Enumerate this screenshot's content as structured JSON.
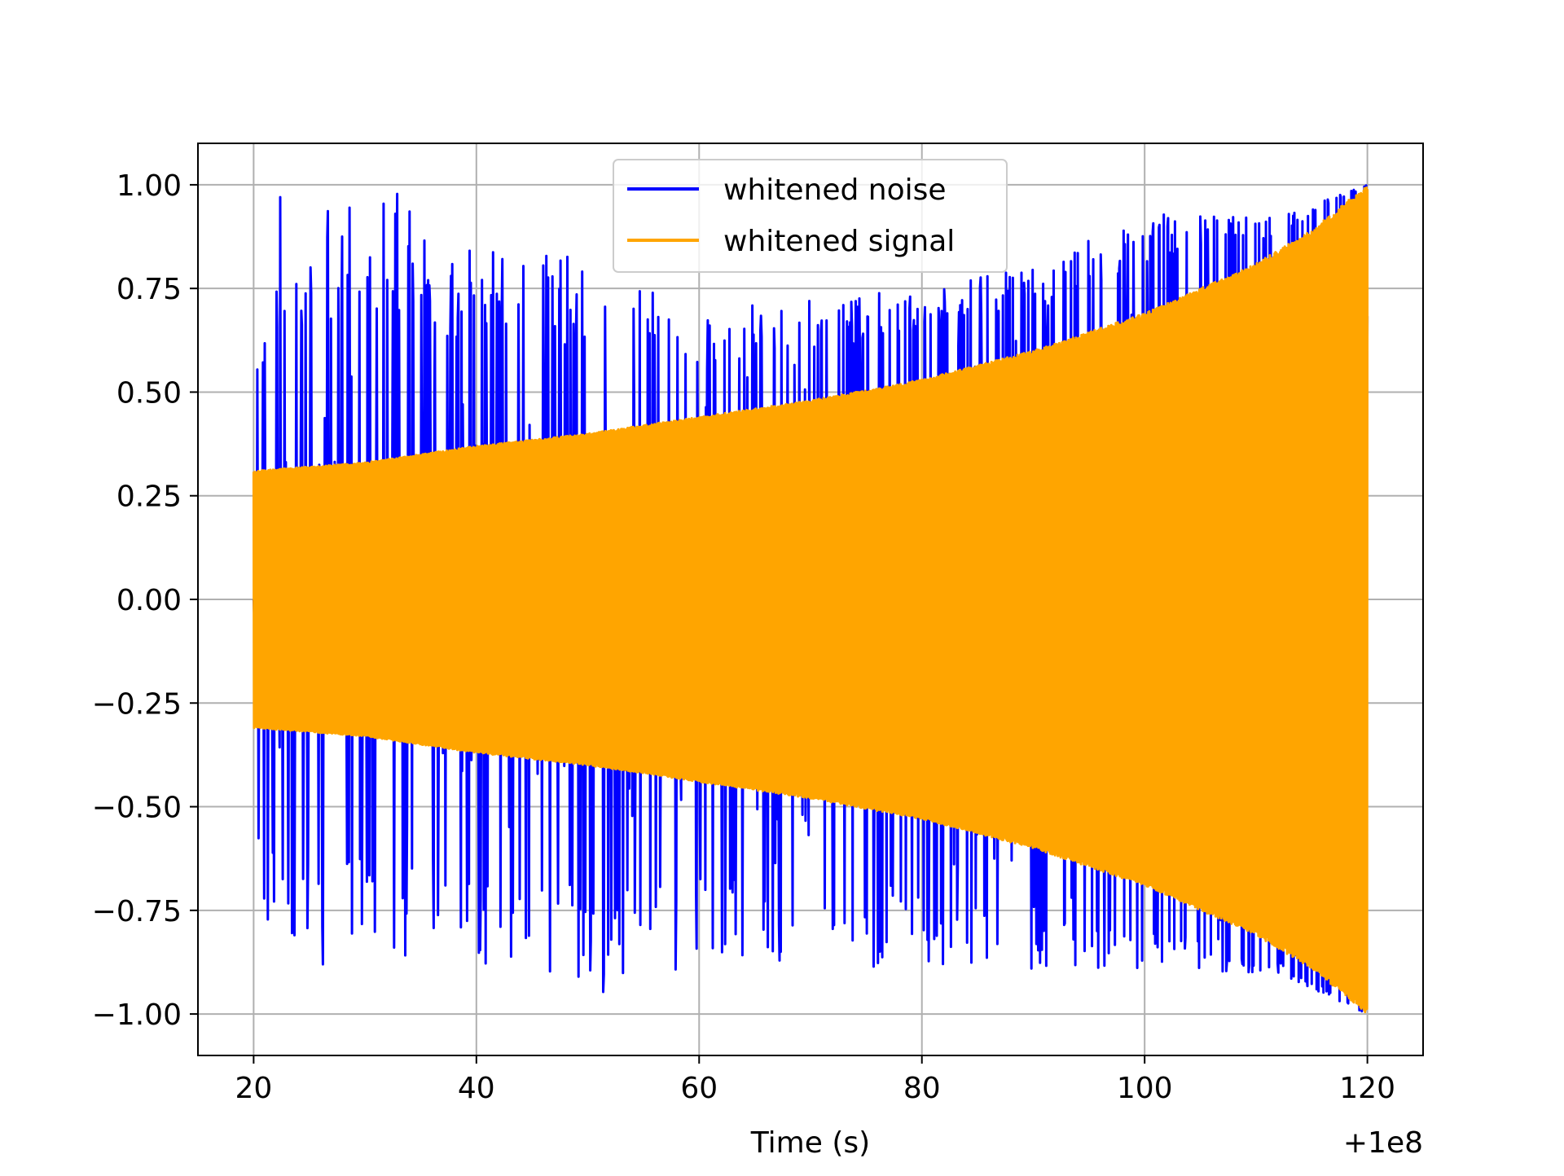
{
  "chart_data": {
    "type": "line",
    "title": "",
    "xlabel": "Time (s)",
    "ylabel": "",
    "x_offset_label": "+1e8",
    "xlim": [
      15,
      125
    ],
    "ylim": [
      -1.1,
      1.1
    ],
    "x_ticks": [
      20,
      40,
      60,
      80,
      100,
      120
    ],
    "x_tick_labels": [
      "20",
      "40",
      "60",
      "80",
      "100",
      "120"
    ],
    "y_ticks": [
      -1.0,
      -0.75,
      -0.5,
      -0.25,
      0.0,
      0.25,
      0.5,
      0.75,
      1.0
    ],
    "y_tick_labels": [
      "−1.00",
      "−0.75",
      "−0.50",
      "−0.25",
      "0.00",
      "0.25",
      "0.50",
      "0.75",
      "1.00"
    ],
    "grid": true,
    "legend_position": "top-center",
    "series": [
      {
        "name": "whitened noise",
        "color": "#0000ff",
        "x_range": [
          20,
          120
        ],
        "envelope_points_x": [
          20,
          22,
          32,
          40,
          49,
          60,
          70,
          80,
          90,
          100,
          110,
          112,
          120
        ],
        "envelope_upper": [
          0.52,
          1.0,
          1.0,
          0.85,
          0.83,
          0.7,
          0.72,
          0.75,
          0.8,
          0.93,
          0.92,
          0.92,
          1.0
        ],
        "envelope_lower": [
          -0.59,
          -0.91,
          -0.91,
          -0.88,
          -0.98,
          -0.9,
          -0.87,
          -0.91,
          -0.89,
          -0.89,
          -0.9,
          -0.9,
          -1.0
        ]
      },
      {
        "name": "whitened signal",
        "color": "#ffa500",
        "x_range": [
          20,
          120
        ],
        "amplitude_x": [
          20,
          30,
          40,
          50,
          60,
          70,
          80,
          90,
          100,
          110,
          115,
          120
        ],
        "amplitude": [
          0.31,
          0.33,
          0.37,
          0.4,
          0.44,
          0.48,
          0.53,
          0.6,
          0.69,
          0.81,
          0.89,
          1.0
        ]
      }
    ]
  }
}
